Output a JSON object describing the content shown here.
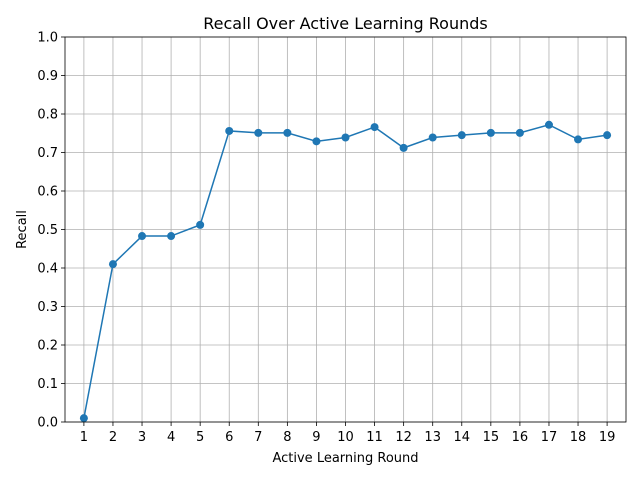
{
  "chart_data": {
    "type": "line",
    "title": "Recall Over Active Learning Rounds",
    "xlabel": "Active Learning Round",
    "ylabel": "Recall",
    "x": [
      1,
      2,
      3,
      4,
      5,
      6,
      7,
      8,
      9,
      10,
      11,
      12,
      13,
      14,
      15,
      16,
      17,
      18,
      19
    ],
    "x_tick_labels": [
      "1",
      "2",
      "3",
      "4",
      "5",
      "6",
      "7",
      "8",
      "9",
      "10",
      "11",
      "12",
      "13",
      "14",
      "15",
      "16",
      "17",
      "18",
      "19"
    ],
    "series": [
      {
        "values": [
          0.01,
          0.41,
          0.483,
          0.483,
          0.512,
          0.756,
          0.751,
          0.751,
          0.729,
          0.739,
          0.766,
          0.712,
          0.739,
          0.745,
          0.751,
          0.751,
          0.772,
          0.734,
          0.745
        ],
        "color": "#1f77b4",
        "marker": "circle"
      }
    ],
    "xlim": [
      0.35,
      19.65
    ],
    "ylim": [
      0,
      1.0
    ],
    "y_ticks": [
      0.0,
      0.1,
      0.2,
      0.3,
      0.4,
      0.5,
      0.6,
      0.7,
      0.8,
      0.9,
      1.0
    ],
    "y_tick_labels": [
      "0.0",
      "0.1",
      "0.2",
      "0.3",
      "0.4",
      "0.5",
      "0.6",
      "0.7",
      "0.8",
      "0.9",
      "1.0"
    ],
    "grid": true
  }
}
